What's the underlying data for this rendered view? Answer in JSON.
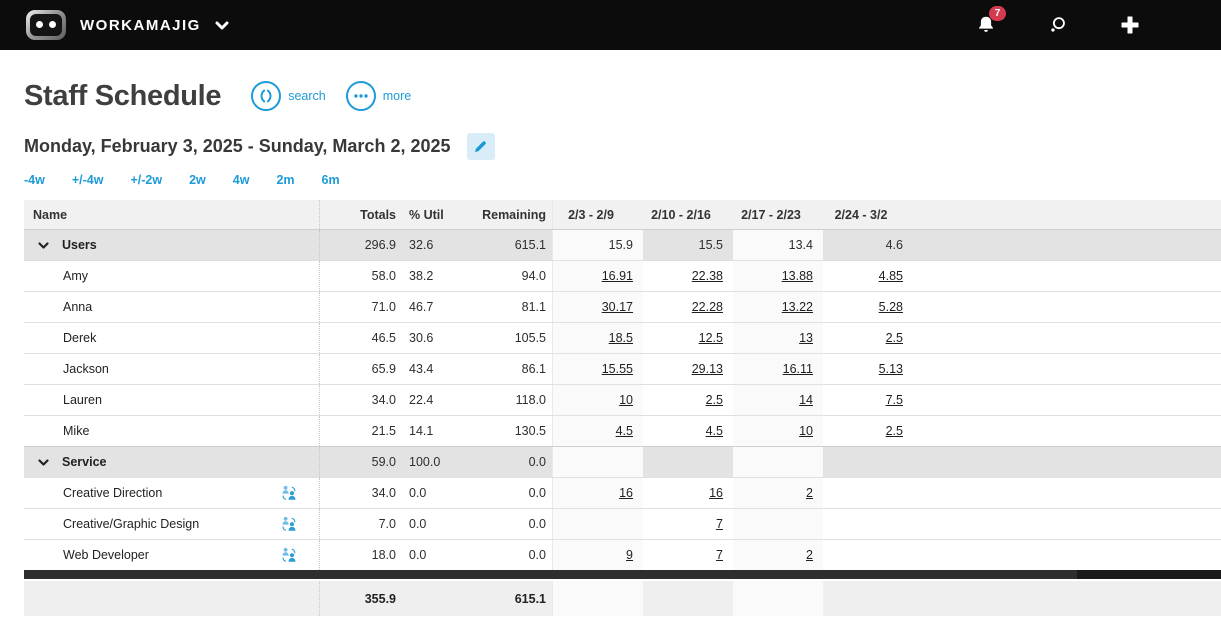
{
  "topbar": {
    "brand": "WORKAMAJIG",
    "notification_count": "7",
    "icons": [
      "workamajig-logo-icon",
      "chevron-down-icon",
      "bell-icon",
      "search-icon",
      "plus-icon"
    ]
  },
  "page": {
    "title": "Staff Schedule",
    "actions": [
      {
        "label": "search",
        "icon": "search-toggle-icon"
      },
      {
        "label": "more",
        "icon": "ellipsis-icon"
      }
    ],
    "date_range": "Monday, February 3, 2025 - Sunday, March 2, 2025",
    "edit_icon": "pencil-icon",
    "quick_links": [
      "-4w",
      "+/-4w",
      "+/-2w",
      "2w",
      "4w",
      "2m",
      "6m"
    ]
  },
  "table": {
    "columns": [
      "Name",
      "Totals",
      "% Util",
      "Remaining",
      "2/3 - 2/9",
      "2/10 - 2/16",
      "2/17 - 2/23",
      "2/24 - 3/2"
    ],
    "groups": [
      {
        "label": "Users",
        "totals": "296.9",
        "util": "32.6",
        "remaining": "615.1",
        "weeks": [
          "15.9",
          "15.5",
          "13.4",
          "4.6"
        ],
        "rows": [
          {
            "name": "Amy",
            "totals": "58.0",
            "util": "38.2",
            "remaining": "94.0",
            "weeks": [
              "16.91",
              "22.38",
              "13.88",
              "4.85"
            ],
            "icon": false
          },
          {
            "name": "Anna",
            "totals": "71.0",
            "util": "46.7",
            "remaining": "81.1",
            "weeks": [
              "30.17",
              "22.28",
              "13.22",
              "5.28"
            ],
            "icon": false
          },
          {
            "name": "Derek",
            "totals": "46.5",
            "util": "30.6",
            "remaining": "105.5",
            "weeks": [
              "18.5",
              "12.5",
              "13",
              "2.5"
            ],
            "icon": false
          },
          {
            "name": "Jackson",
            "totals": "65.9",
            "util": "43.4",
            "remaining": "86.1",
            "weeks": [
              "15.55",
              "29.13",
              "16.11",
              "5.13"
            ],
            "icon": false
          },
          {
            "name": "Lauren",
            "totals": "34.0",
            "util": "22.4",
            "remaining": "118.0",
            "weeks": [
              "10",
              "2.5",
              "14",
              "7.5"
            ],
            "icon": false
          },
          {
            "name": "Mike",
            "totals": "21.5",
            "util": "14.1",
            "remaining": "130.5",
            "weeks": [
              "4.5",
              "4.5",
              "10",
              "2.5"
            ],
            "icon": false
          }
        ]
      },
      {
        "label": "Service",
        "totals": "59.0",
        "util": "100.0",
        "remaining": "0.0",
        "weeks": [
          "",
          "",
          "",
          ""
        ],
        "rows": [
          {
            "name": "Creative Direction",
            "totals": "34.0",
            "util": "0.0",
            "remaining": "0.0",
            "weeks": [
              "16",
              "16",
              "2",
              ""
            ],
            "icon": true
          },
          {
            "name": "Creative/Graphic Design",
            "totals": "7.0",
            "util": "0.0",
            "remaining": "0.0",
            "weeks": [
              "",
              "7",
              "",
              ""
            ],
            "icon": true
          },
          {
            "name": "Web Developer",
            "totals": "18.0",
            "util": "0.0",
            "remaining": "0.0",
            "weeks": [
              "9",
              "7",
              "2",
              ""
            ],
            "icon": true
          }
        ]
      }
    ],
    "footer": {
      "totals": "355.9",
      "remaining": "615.1"
    }
  },
  "colors": {
    "accent": "#1d9bd8",
    "accent_light_bg": "#d9edf8",
    "badge_red": "#d63a50",
    "topbar_bg": "#0c0c0c",
    "header_row_bg": "#f1f1f1",
    "group_row_bg": "#e3e3e3",
    "band_bg": "#fafafa",
    "footer_row_bg": "#efefef",
    "scrollbar_bg": "#2e2e2e"
  }
}
